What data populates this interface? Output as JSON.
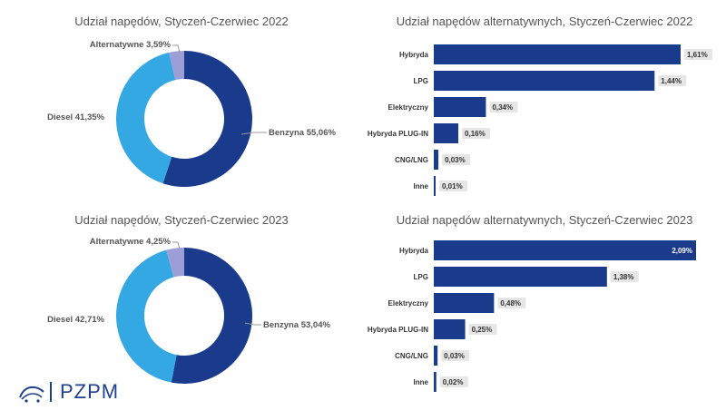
{
  "colors": {
    "benzyna": "#1a3a8c",
    "diesel": "#34a8e3",
    "alternatywne": "#9b9fd6",
    "bar": "#1a3a8c",
    "label_bg": "#e6e6e6"
  },
  "logo": {
    "text": "PZPM"
  },
  "chart_data": [
    {
      "type": "pie",
      "title": "Udział napędów, Styczeń-Czerwiec 2022",
      "slices": [
        {
          "name": "Benzyna",
          "value": 55.06,
          "label": "Benzyna 55,06%"
        },
        {
          "name": "Diesel",
          "value": 41.35,
          "label": "Diesel 41,35%"
        },
        {
          "name": "Alternatywne",
          "value": 3.59,
          "label": "Alternatywne 3,59%"
        }
      ]
    },
    {
      "type": "bar",
      "title": "Udział napędów alternatywnych, Styczeń-Czerwiec 2022",
      "categories": [
        "Hybryda",
        "LPG",
        "Elektryczny",
        "Hybryda PLUG-IN",
        "CNG/LNG",
        "Inne"
      ],
      "values": [
        1.61,
        1.44,
        0.34,
        0.16,
        0.03,
        0.01
      ],
      "labels": [
        "1,61%",
        "1,44%",
        "0,34%",
        "0,16%",
        "0,03%",
        "0,01%"
      ]
    },
    {
      "type": "pie",
      "title": "Udział napędów, Styczeń-Czerwiec 2023",
      "slices": [
        {
          "name": "Benzyna",
          "value": 53.04,
          "label": "Benzyna 53,04%"
        },
        {
          "name": "Diesel",
          "value": 42.71,
          "label": "Diesel 42,71%"
        },
        {
          "name": "Alternatywne",
          "value": 4.25,
          "label": "Alternatywne 4,25%"
        }
      ]
    },
    {
      "type": "bar",
      "title": "Udział napędów alternatywnych, Styczeń-Czerwiec 2023",
      "categories": [
        "Hybryda",
        "LPG",
        "Elektryczny",
        "Hybryda PLUG-IN",
        "CNG/LNG",
        "Inne"
      ],
      "values": [
        2.09,
        1.38,
        0.48,
        0.25,
        0.03,
        0.02
      ],
      "labels": [
        "2,09%",
        "1,38%",
        "0,48%",
        "0,25%",
        "0,03%",
        "0,02%"
      ]
    }
  ]
}
